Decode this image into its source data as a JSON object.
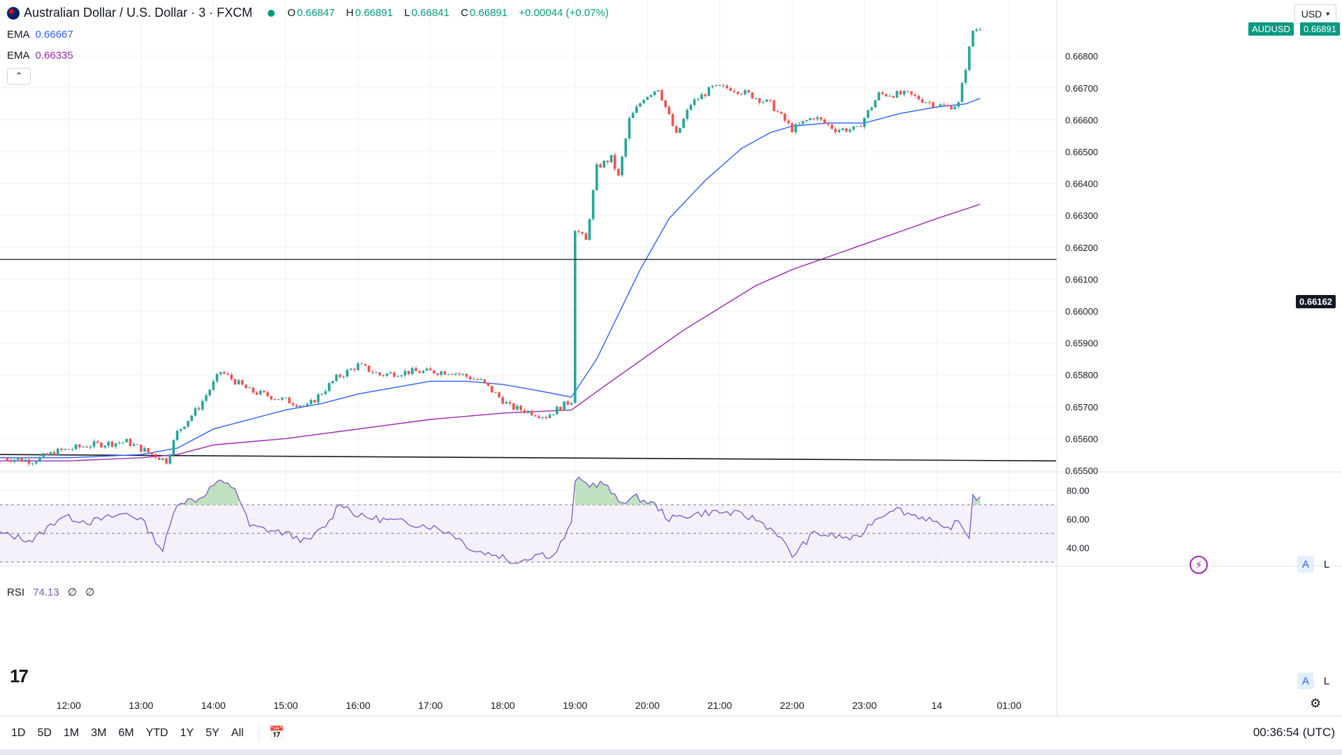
{
  "header": {
    "symbol_title": "Australian Dollar / U.S. Dollar · 3 · FXCM",
    "open_label": "O",
    "open": "0.66847",
    "high_label": "H",
    "high": "0.66891",
    "low_label": "L",
    "low": "0.66841",
    "close_label": "C",
    "close": "0.66891",
    "change": "+0.00044 (+0.07%)"
  },
  "indicators": {
    "ema1_label": "EMA",
    "ema1_value": "0.66667",
    "ema2_label": "EMA",
    "ema2_value": "0.66335",
    "rsi_label": "RSI",
    "rsi_value": "74.13",
    "rsi_extra1": "∅",
    "rsi_extra2": "∅"
  },
  "price_axis": {
    "currency": "USD",
    "symbol_tag": "AUDUSD",
    "last_price": "0.66891",
    "hline_price": "0.66162",
    "scale_auto": "A",
    "scale_log": "L"
  },
  "bottom_bar": {
    "ranges": [
      "1D",
      "5D",
      "1M",
      "3M",
      "6M",
      "YTD",
      "1Y",
      "5Y",
      "All"
    ],
    "clock": "00:36:54 (UTC)"
  },
  "colors": {
    "up": "#26a69a",
    "down": "#ef5350",
    "ema_fast": "#2962ff",
    "ema_slow": "#9c27b0",
    "rsi": "#7e57c2",
    "rsi_band": "#ede7f6",
    "grid": "#eef0f4"
  },
  "chart_data": {
    "type": "candlestick",
    "title": "Australian Dollar / U.S. Dollar · 3 · FXCM",
    "ylim": [
      0.655,
      0.6691
    ],
    "y_ticks": [
      "0.66800",
      "0.66700",
      "0.66600",
      "0.66500",
      "0.66400",
      "0.66300",
      "0.66200",
      "0.66100",
      "0.66000",
      "0.65900",
      "0.65800",
      "0.65700",
      "0.65600",
      "0.65500"
    ],
    "y_tick_values": [
      0.668,
      0.667,
      0.666,
      0.665,
      0.664,
      0.663,
      0.662,
      0.661,
      0.66,
      0.659,
      0.658,
      0.657,
      0.656,
      0.655
    ],
    "x_ticks": [
      "12:00",
      "13:00",
      "14:00",
      "15:00",
      "16:00",
      "17:00",
      "18:00",
      "19:00",
      "20:00",
      "21:00",
      "22:00",
      "23:00",
      "14",
      "01:00"
    ],
    "x_tick_hours": [
      12,
      13,
      14,
      15,
      16,
      17,
      18,
      19,
      20,
      21,
      22,
      23,
      24,
      25
    ],
    "x_range_hours": [
      11.05,
      25.65
    ],
    "keyframes": [
      [
        11.05,
        0.6554
      ],
      [
        11.5,
        0.6553
      ],
      [
        11.85,
        0.6556
      ],
      [
        12.3,
        0.6558
      ],
      [
        12.8,
        0.6559
      ],
      [
        13.35,
        0.6553
      ],
      [
        13.5,
        0.6562
      ],
      [
        13.8,
        0.657
      ],
      [
        14.1,
        0.6581
      ],
      [
        14.5,
        0.6575
      ],
      [
        15.0,
        0.6572
      ],
      [
        15.3,
        0.657
      ],
      [
        15.7,
        0.6579
      ],
      [
        16.0,
        0.6583
      ],
      [
        16.3,
        0.658
      ],
      [
        16.7,
        0.6581
      ],
      [
        17.3,
        0.6581
      ],
      [
        17.7,
        0.6578
      ],
      [
        18.1,
        0.657
      ],
      [
        18.6,
        0.6567
      ],
      [
        18.95,
        0.6572
      ],
      [
        19.0,
        0.6626
      ],
      [
        19.15,
        0.6622
      ],
      [
        19.3,
        0.6645
      ],
      [
        19.5,
        0.6648
      ],
      [
        19.6,
        0.6642
      ],
      [
        19.75,
        0.666
      ],
      [
        19.95,
        0.6667
      ],
      [
        20.15,
        0.667
      ],
      [
        20.4,
        0.6655
      ],
      [
        20.6,
        0.6665
      ],
      [
        20.9,
        0.667
      ],
      [
        21.15,
        0.667
      ],
      [
        21.4,
        0.6668
      ],
      [
        21.7,
        0.6665
      ],
      [
        22.0,
        0.6657
      ],
      [
        22.3,
        0.6661
      ],
      [
        22.6,
        0.6657
      ],
      [
        22.9,
        0.6657
      ],
      [
        23.2,
        0.6668
      ],
      [
        23.6,
        0.6668
      ],
      [
        23.95,
        0.6665
      ],
      [
        24.15,
        0.6664
      ],
      [
        24.3,
        0.6665
      ],
      [
        24.5,
        0.6688
      ],
      [
        24.6,
        0.6689
      ]
    ],
    "candle_interval_minutes": 3,
    "series": [
      {
        "name": "EMA",
        "value": "0.66667",
        "color": "#2962ff",
        "points": [
          [
            11.05,
            0.6554
          ],
          [
            12.0,
            0.6554
          ],
          [
            13.0,
            0.6555
          ],
          [
            13.5,
            0.6557
          ],
          [
            14.0,
            0.6563
          ],
          [
            14.5,
            0.6566
          ],
          [
            15.0,
            0.6569
          ],
          [
            15.5,
            0.6571
          ],
          [
            16.0,
            0.6574
          ],
          [
            16.5,
            0.6576
          ],
          [
            17.0,
            0.6578
          ],
          [
            17.5,
            0.6578
          ],
          [
            18.0,
            0.6577
          ],
          [
            18.5,
            0.6575
          ],
          [
            18.95,
            0.6573
          ],
          [
            19.3,
            0.6585
          ],
          [
            19.6,
            0.6599
          ],
          [
            19.9,
            0.6613
          ],
          [
            20.3,
            0.6629
          ],
          [
            20.8,
            0.6641
          ],
          [
            21.3,
            0.6651
          ],
          [
            21.7,
            0.6656
          ],
          [
            22.0,
            0.6658
          ],
          [
            22.5,
            0.6659
          ],
          [
            23.0,
            0.6659
          ],
          [
            23.5,
            0.6662
          ],
          [
            24.0,
            0.6664
          ],
          [
            24.4,
            0.6665
          ],
          [
            24.6,
            0.66667
          ]
        ]
      },
      {
        "name": "EMA",
        "value": "0.66335",
        "color": "#9c27b0",
        "points": [
          [
            11.05,
            0.6553
          ],
          [
            12.0,
            0.6553
          ],
          [
            13.0,
            0.6554
          ],
          [
            13.5,
            0.6555
          ],
          [
            14.0,
            0.6558
          ],
          [
            15.0,
            0.656
          ],
          [
            16.0,
            0.6563
          ],
          [
            17.0,
            0.6566
          ],
          [
            18.0,
            0.6568
          ],
          [
            18.95,
            0.6569
          ],
          [
            19.5,
            0.6578
          ],
          [
            20.0,
            0.6586
          ],
          [
            20.5,
            0.6594
          ],
          [
            21.0,
            0.6601
          ],
          [
            21.5,
            0.6608
          ],
          [
            22.0,
            0.6613
          ],
          [
            22.5,
            0.6617
          ],
          [
            23.0,
            0.6621
          ],
          [
            23.5,
            0.6625
          ],
          [
            24.0,
            0.6629
          ],
          [
            24.6,
            0.66335
          ]
        ]
      }
    ],
    "horizontal_line": 0.66162,
    "trend_line": [
      [
        11.05,
        0.6555
      ],
      [
        25.65,
        0.6553
      ]
    ],
    "rsi": {
      "label": "RSI",
      "value": "74.13",
      "y_ticks": [
        "80.00",
        "60.00",
        "40.00"
      ],
      "y_tick_values": [
        80,
        60,
        40
      ],
      "ylim": [
        28,
        92
      ],
      "upper_band": 70,
      "middle": 50,
      "lower_band": 30,
      "keyframes": [
        [
          11.05,
          50
        ],
        [
          11.5,
          45
        ],
        [
          11.9,
          62
        ],
        [
          12.3,
          58
        ],
        [
          12.8,
          64
        ],
        [
          13.0,
          60
        ],
        [
          13.3,
          38
        ],
        [
          13.5,
          72
        ],
        [
          13.8,
          74
        ],
        [
          14.05,
          86
        ],
        [
          14.3,
          82
        ],
        [
          14.5,
          55
        ],
        [
          15.0,
          50
        ],
        [
          15.3,
          44
        ],
        [
          15.6,
          58
        ],
        [
          15.75,
          72
        ],
        [
          16.0,
          62
        ],
        [
          16.3,
          60
        ],
        [
          16.6,
          58
        ],
        [
          17.0,
          55
        ],
        [
          17.3,
          50
        ],
        [
          17.6,
          38
        ],
        [
          18.0,
          34
        ],
        [
          18.1,
          28
        ],
        [
          18.5,
          36
        ],
        [
          18.7,
          34
        ],
        [
          18.95,
          56
        ],
        [
          19.0,
          88
        ],
        [
          19.2,
          84
        ],
        [
          19.4,
          85
        ],
        [
          19.6,
          72
        ],
        [
          19.85,
          75
        ],
        [
          20.1,
          70
        ],
        [
          20.3,
          60
        ],
        [
          20.6,
          63
        ],
        [
          20.9,
          65
        ],
        [
          21.2,
          64
        ],
        [
          21.5,
          60
        ],
        [
          21.8,
          50
        ],
        [
          22.0,
          34
        ],
        [
          22.3,
          50
        ],
        [
          22.6,
          48
        ],
        [
          22.9,
          46
        ],
        [
          23.1,
          58
        ],
        [
          23.4,
          68
        ],
        [
          23.6,
          64
        ],
        [
          23.9,
          60
        ],
        [
          24.1,
          52
        ],
        [
          24.3,
          58
        ],
        [
          24.45,
          48
        ],
        [
          24.5,
          76
        ],
        [
          24.6,
          74.13
        ]
      ]
    }
  }
}
